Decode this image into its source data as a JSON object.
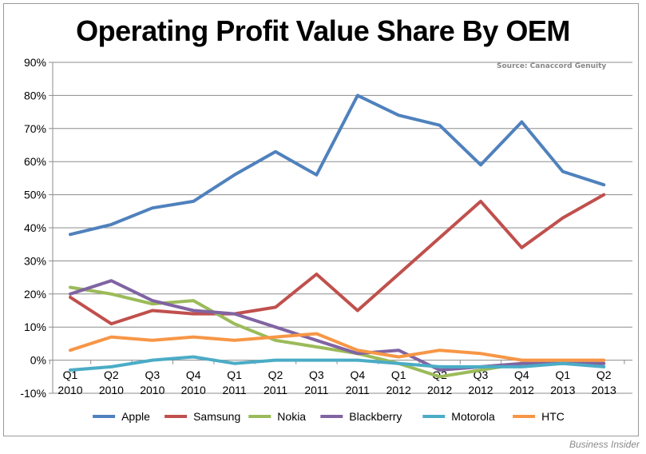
{
  "header": {
    "title": "Operating Profit Value Share By OEM",
    "source": "Source: Canaccord Genuity"
  },
  "footer": {
    "credit": "Business Insider"
  },
  "chart_data": {
    "type": "line",
    "title": "Operating Profit Value Share By OEM",
    "xlabel": "",
    "ylabel": "",
    "categories": [
      [
        "Q1",
        "2010"
      ],
      [
        "Q2",
        "2010"
      ],
      [
        "Q3",
        "2010"
      ],
      [
        "Q4",
        "2010"
      ],
      [
        "Q1",
        "2011"
      ],
      [
        "Q2",
        "2011"
      ],
      [
        "Q3",
        "2011"
      ],
      [
        "Q4",
        "2011"
      ],
      [
        "Q1",
        "2012"
      ],
      [
        "Q2",
        "2012"
      ],
      [
        "Q3",
        "2012"
      ],
      [
        "Q4",
        "2012"
      ],
      [
        "Q1",
        "2013"
      ],
      [
        "Q2",
        "2013"
      ]
    ],
    "ylim": [
      -10,
      90
    ],
    "yticks": [
      -10,
      0,
      10,
      20,
      30,
      40,
      50,
      60,
      70,
      80,
      90
    ],
    "ytick_labels": [
      "-10%",
      "0%",
      "10%",
      "20%",
      "30%",
      "40%",
      "50%",
      "60%",
      "70%",
      "80%",
      "90%"
    ],
    "grid": "horizontal",
    "legend_position": "bottom",
    "series": [
      {
        "name": "Apple",
        "color": "#4f81bd",
        "values": [
          38,
          41,
          46,
          48,
          56,
          63,
          56,
          80,
          74,
          71,
          59,
          72,
          57,
          53
        ]
      },
      {
        "name": "Samsung",
        "color": "#c0504d",
        "values": [
          19,
          11,
          15,
          14,
          14,
          16,
          26,
          15,
          26,
          37,
          48,
          34,
          43,
          50
        ]
      },
      {
        "name": "Nokia",
        "color": "#9bbb59",
        "values": [
          22,
          20,
          17,
          18,
          11,
          6,
          4,
          2,
          -1,
          -5,
          -3,
          -1,
          -1,
          -1
        ]
      },
      {
        "name": "Blackberry",
        "color": "#8064a2",
        "values": [
          20,
          24,
          18,
          15,
          14,
          10,
          6,
          2,
          3,
          -3,
          -2,
          -1,
          -1,
          -1
        ]
      },
      {
        "name": "Motorola",
        "color": "#4bacc6",
        "values": [
          -3,
          -2,
          0,
          1,
          -1,
          0,
          0,
          0,
          -1,
          -2,
          -2,
          -2,
          -1,
          -2
        ]
      },
      {
        "name": "HTC",
        "color": "#f79646",
        "values": [
          3,
          7,
          6,
          7,
          6,
          7,
          8,
          3,
          1,
          3,
          2,
          0,
          0,
          0
        ]
      }
    ]
  }
}
